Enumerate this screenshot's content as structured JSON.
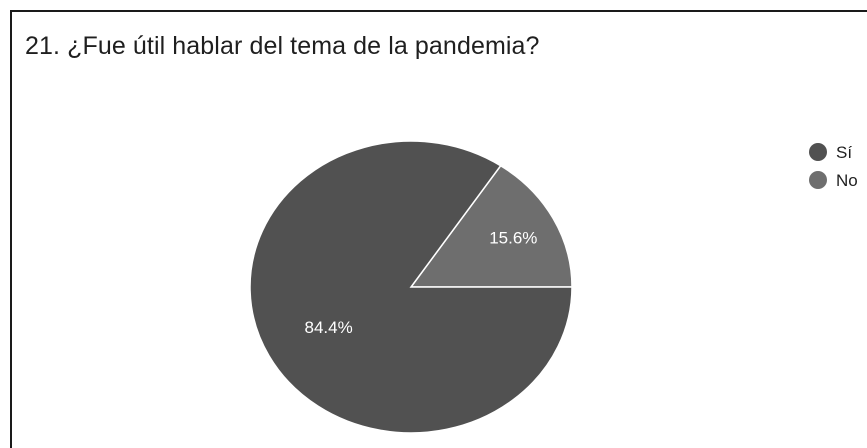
{
  "chart_data": {
    "type": "pie",
    "title": "21. ¿Fue útil hablar del tema de la pandemia?",
    "categories": [
      "Sí",
      "No"
    ],
    "values": [
      84.4,
      15.6
    ],
    "value_labels": [
      "84.4%",
      "15.6%"
    ],
    "colors": [
      "#515151",
      "#6e6e6e"
    ],
    "legend_position": "right"
  }
}
